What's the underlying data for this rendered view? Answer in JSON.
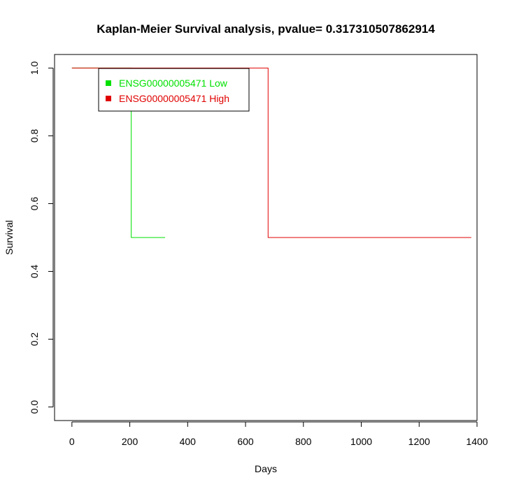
{
  "chart_data": {
    "type": "line",
    "title": "Kaplan-Meier Survival analysis, pvalue= 0.317310507862914",
    "xlabel": "Days",
    "ylabel": "Survival",
    "xlim": [
      -60,
      1400
    ],
    "ylim": [
      -0.04,
      1.04
    ],
    "x_ticks": [
      0,
      200,
      400,
      600,
      800,
      1000,
      1200,
      1400
    ],
    "y_ticks": [
      0.0,
      0.2,
      0.4,
      0.6,
      0.8,
      1.0
    ],
    "x_tick_labels": [
      "0",
      "200",
      "400",
      "600",
      "800",
      "1000",
      "1200",
      "1400"
    ],
    "y_tick_labels": [
      "0.0",
      "0.2",
      "0.4",
      "0.6",
      "0.8",
      "1.0"
    ],
    "legend_position": "top-left",
    "grid": false,
    "series": [
      {
        "name": "ENSG00000005471 Low",
        "color": "#00e000",
        "step_points": [
          [
            0,
            1.0
          ],
          [
            205,
            1.0
          ],
          [
            205,
            0.5
          ],
          [
            322,
            0.5
          ]
        ]
      },
      {
        "name": "ENSG00000005471 High",
        "color": "#e00000",
        "step_points": [
          [
            0,
            1.0
          ],
          [
            678,
            1.0
          ],
          [
            678,
            0.5
          ],
          [
            1380,
            0.5
          ]
        ]
      }
    ]
  }
}
